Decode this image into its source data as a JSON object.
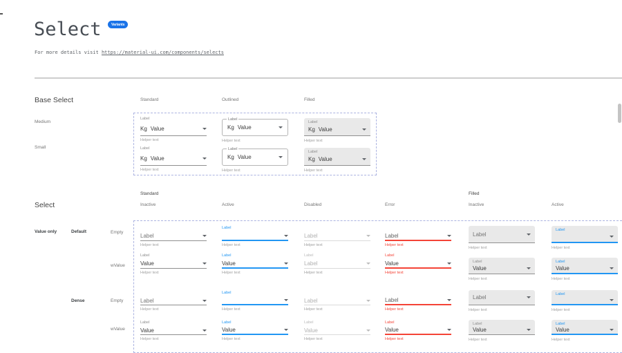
{
  "header": {
    "title": "Select",
    "badge": "Variants",
    "subtitle_prefix": "For more details visit ",
    "subtitle_link": "https://material-ui.com/components/selects"
  },
  "base_select": {
    "heading": "Base Select",
    "columns": [
      "Standard",
      "Outlined",
      "Filled"
    ],
    "rows": [
      "Medium",
      "Small"
    ],
    "field": {
      "label": "Label",
      "adornment": "Kg",
      "value": "Value",
      "helper": "Helper text"
    }
  },
  "select": {
    "heading": "Select",
    "category_label": "Value only",
    "density_groups": [
      "Default",
      "Dense"
    ],
    "groups": [
      {
        "label": "Standard",
        "columns": [
          "Inactive",
          "Active",
          "Disabled",
          "Error"
        ]
      },
      {
        "label": "Filled",
        "columns": [
          "Inactive",
          "Active"
        ]
      }
    ],
    "rows": [
      {
        "group": "Default",
        "label": "Empty",
        "cells": [
          {
            "variant": "standard",
            "state": "inactive",
            "float_label": "",
            "value": "Label",
            "placeholder": true,
            "helper": "Helper text"
          },
          {
            "variant": "standard",
            "state": "active",
            "float_label": "Label",
            "value": "",
            "placeholder": false,
            "helper": "Helper text"
          },
          {
            "variant": "standard",
            "state": "disabled",
            "float_label": "",
            "value": "Label",
            "placeholder": true,
            "helper": "Helper text"
          },
          {
            "variant": "standard",
            "state": "error",
            "float_label": "",
            "value": "Label",
            "placeholder": true,
            "helper": "Helper text"
          },
          {
            "variant": "filled",
            "state": "inactive",
            "float_label": "",
            "value": "Label",
            "placeholder": true,
            "helper": "Helper text"
          },
          {
            "variant": "filled",
            "state": "active",
            "float_label": "Label",
            "value": "",
            "placeholder": false,
            "helper": "Helper text"
          }
        ]
      },
      {
        "group": "Default",
        "label": "wValue",
        "cells": [
          {
            "variant": "standard",
            "state": "inactive",
            "float_label": "Label",
            "value": "Value",
            "placeholder": false,
            "helper": "Helper text"
          },
          {
            "variant": "standard",
            "state": "active",
            "float_label": "Label",
            "value": "Value",
            "placeholder": false,
            "helper": "Helper text"
          },
          {
            "variant": "standard",
            "state": "disabled",
            "float_label": "Label",
            "value": "Label",
            "placeholder": false,
            "helper": "Helper text"
          },
          {
            "variant": "standard",
            "state": "error",
            "float_label": "Label",
            "value": "Value",
            "placeholder": false,
            "helper": "Helper text"
          },
          {
            "variant": "filled",
            "state": "inactive",
            "float_label": "Label",
            "value": "Value",
            "placeholder": false,
            "helper": "Helper text"
          },
          {
            "variant": "filled",
            "state": "active",
            "float_label": "Label",
            "value": "Value",
            "placeholder": false,
            "helper": "Helper text"
          }
        ]
      },
      {
        "group": "Dense",
        "label": "Empty",
        "cells": [
          {
            "variant": "standard",
            "state": "inactive",
            "float_label": "",
            "value": "Label",
            "placeholder": true,
            "helper": "Helper text"
          },
          {
            "variant": "standard",
            "state": "active",
            "float_label": "Label",
            "value": "",
            "placeholder": false,
            "helper": "Helper text"
          },
          {
            "variant": "standard",
            "state": "disabled",
            "float_label": "",
            "value": "Label",
            "placeholder": true,
            "helper": "Helper text"
          },
          {
            "variant": "standard",
            "state": "error",
            "float_label": "",
            "value": "Label",
            "placeholder": true,
            "helper": "Helper text"
          },
          {
            "variant": "filled",
            "state": "inactive",
            "float_label": "",
            "value": "Label",
            "placeholder": true,
            "helper": "Helper text"
          },
          {
            "variant": "filled",
            "state": "active",
            "float_label": "Label",
            "value": "",
            "placeholder": false,
            "helper": "Helper text"
          }
        ]
      },
      {
        "group": "Dense",
        "label": "wValue",
        "cells": [
          {
            "variant": "standard",
            "state": "inactive",
            "float_label": "Label",
            "value": "Value",
            "placeholder": false,
            "helper": "Helper text"
          },
          {
            "variant": "standard",
            "state": "active",
            "float_label": "Label",
            "value": "Value",
            "placeholder": false,
            "helper": "Helper text"
          },
          {
            "variant": "standard",
            "state": "disabled",
            "float_label": "Label",
            "value": "Value",
            "placeholder": false,
            "helper": "Helper text"
          },
          {
            "variant": "standard",
            "state": "error",
            "float_label": "Label",
            "value": "Value",
            "placeholder": false,
            "helper": "Helper text"
          },
          {
            "variant": "filled",
            "state": "inactive",
            "float_label": "Label",
            "value": "Value",
            "placeholder": false,
            "helper": "Helper text"
          },
          {
            "variant": "filled",
            "state": "active",
            "float_label": "Label",
            "value": "Value",
            "placeholder": false,
            "helper": "Helper text"
          }
        ]
      }
    ]
  },
  "colors": {
    "accent": "#2196f3",
    "error": "#f44336",
    "badge": "#1a73e8",
    "filled_bg": "#e9e9e9",
    "dashed_border": "#aab2e0"
  }
}
